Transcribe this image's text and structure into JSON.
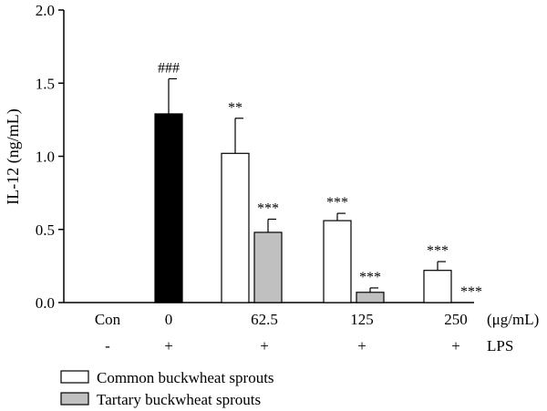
{
  "chart_data": {
    "type": "bar",
    "ylabel": "IL-12 (ng/mL)",
    "ylim": [
      0,
      2.0
    ],
    "yticks": [
      "0.0",
      "0.5",
      "1.0",
      "1.5",
      "2.0"
    ],
    "categories": [
      "Con",
      "0",
      "62.5",
      "125",
      "250"
    ],
    "unit_label": "(μg/mL)",
    "lps_label": "LPS",
    "lps_row": [
      "-",
      "+",
      "+",
      "+",
      "+"
    ],
    "control_bar": {
      "category": "0",
      "value": 1.29,
      "error": 0.24,
      "annotation": "###",
      "color": "#000000"
    },
    "series": [
      {
        "name": "Common buckwheat sprouts",
        "color": "#ffffff",
        "values": [
          null,
          null,
          1.02,
          0.56,
          0.22
        ],
        "errors": [
          null,
          null,
          0.24,
          0.05,
          0.06
        ],
        "annotations": [
          "",
          "",
          "**",
          "***",
          "***"
        ]
      },
      {
        "name": "Tartary buckwheat sprouts",
        "color": "#c0c0c0",
        "values": [
          null,
          null,
          0.48,
          0.07,
          0.0
        ],
        "errors": [
          null,
          null,
          0.09,
          0.03,
          0.0
        ],
        "annotations": [
          "",
          "",
          "***",
          "***",
          "***"
        ]
      }
    ],
    "legend_position": "bottom-left",
    "grid": false
  }
}
